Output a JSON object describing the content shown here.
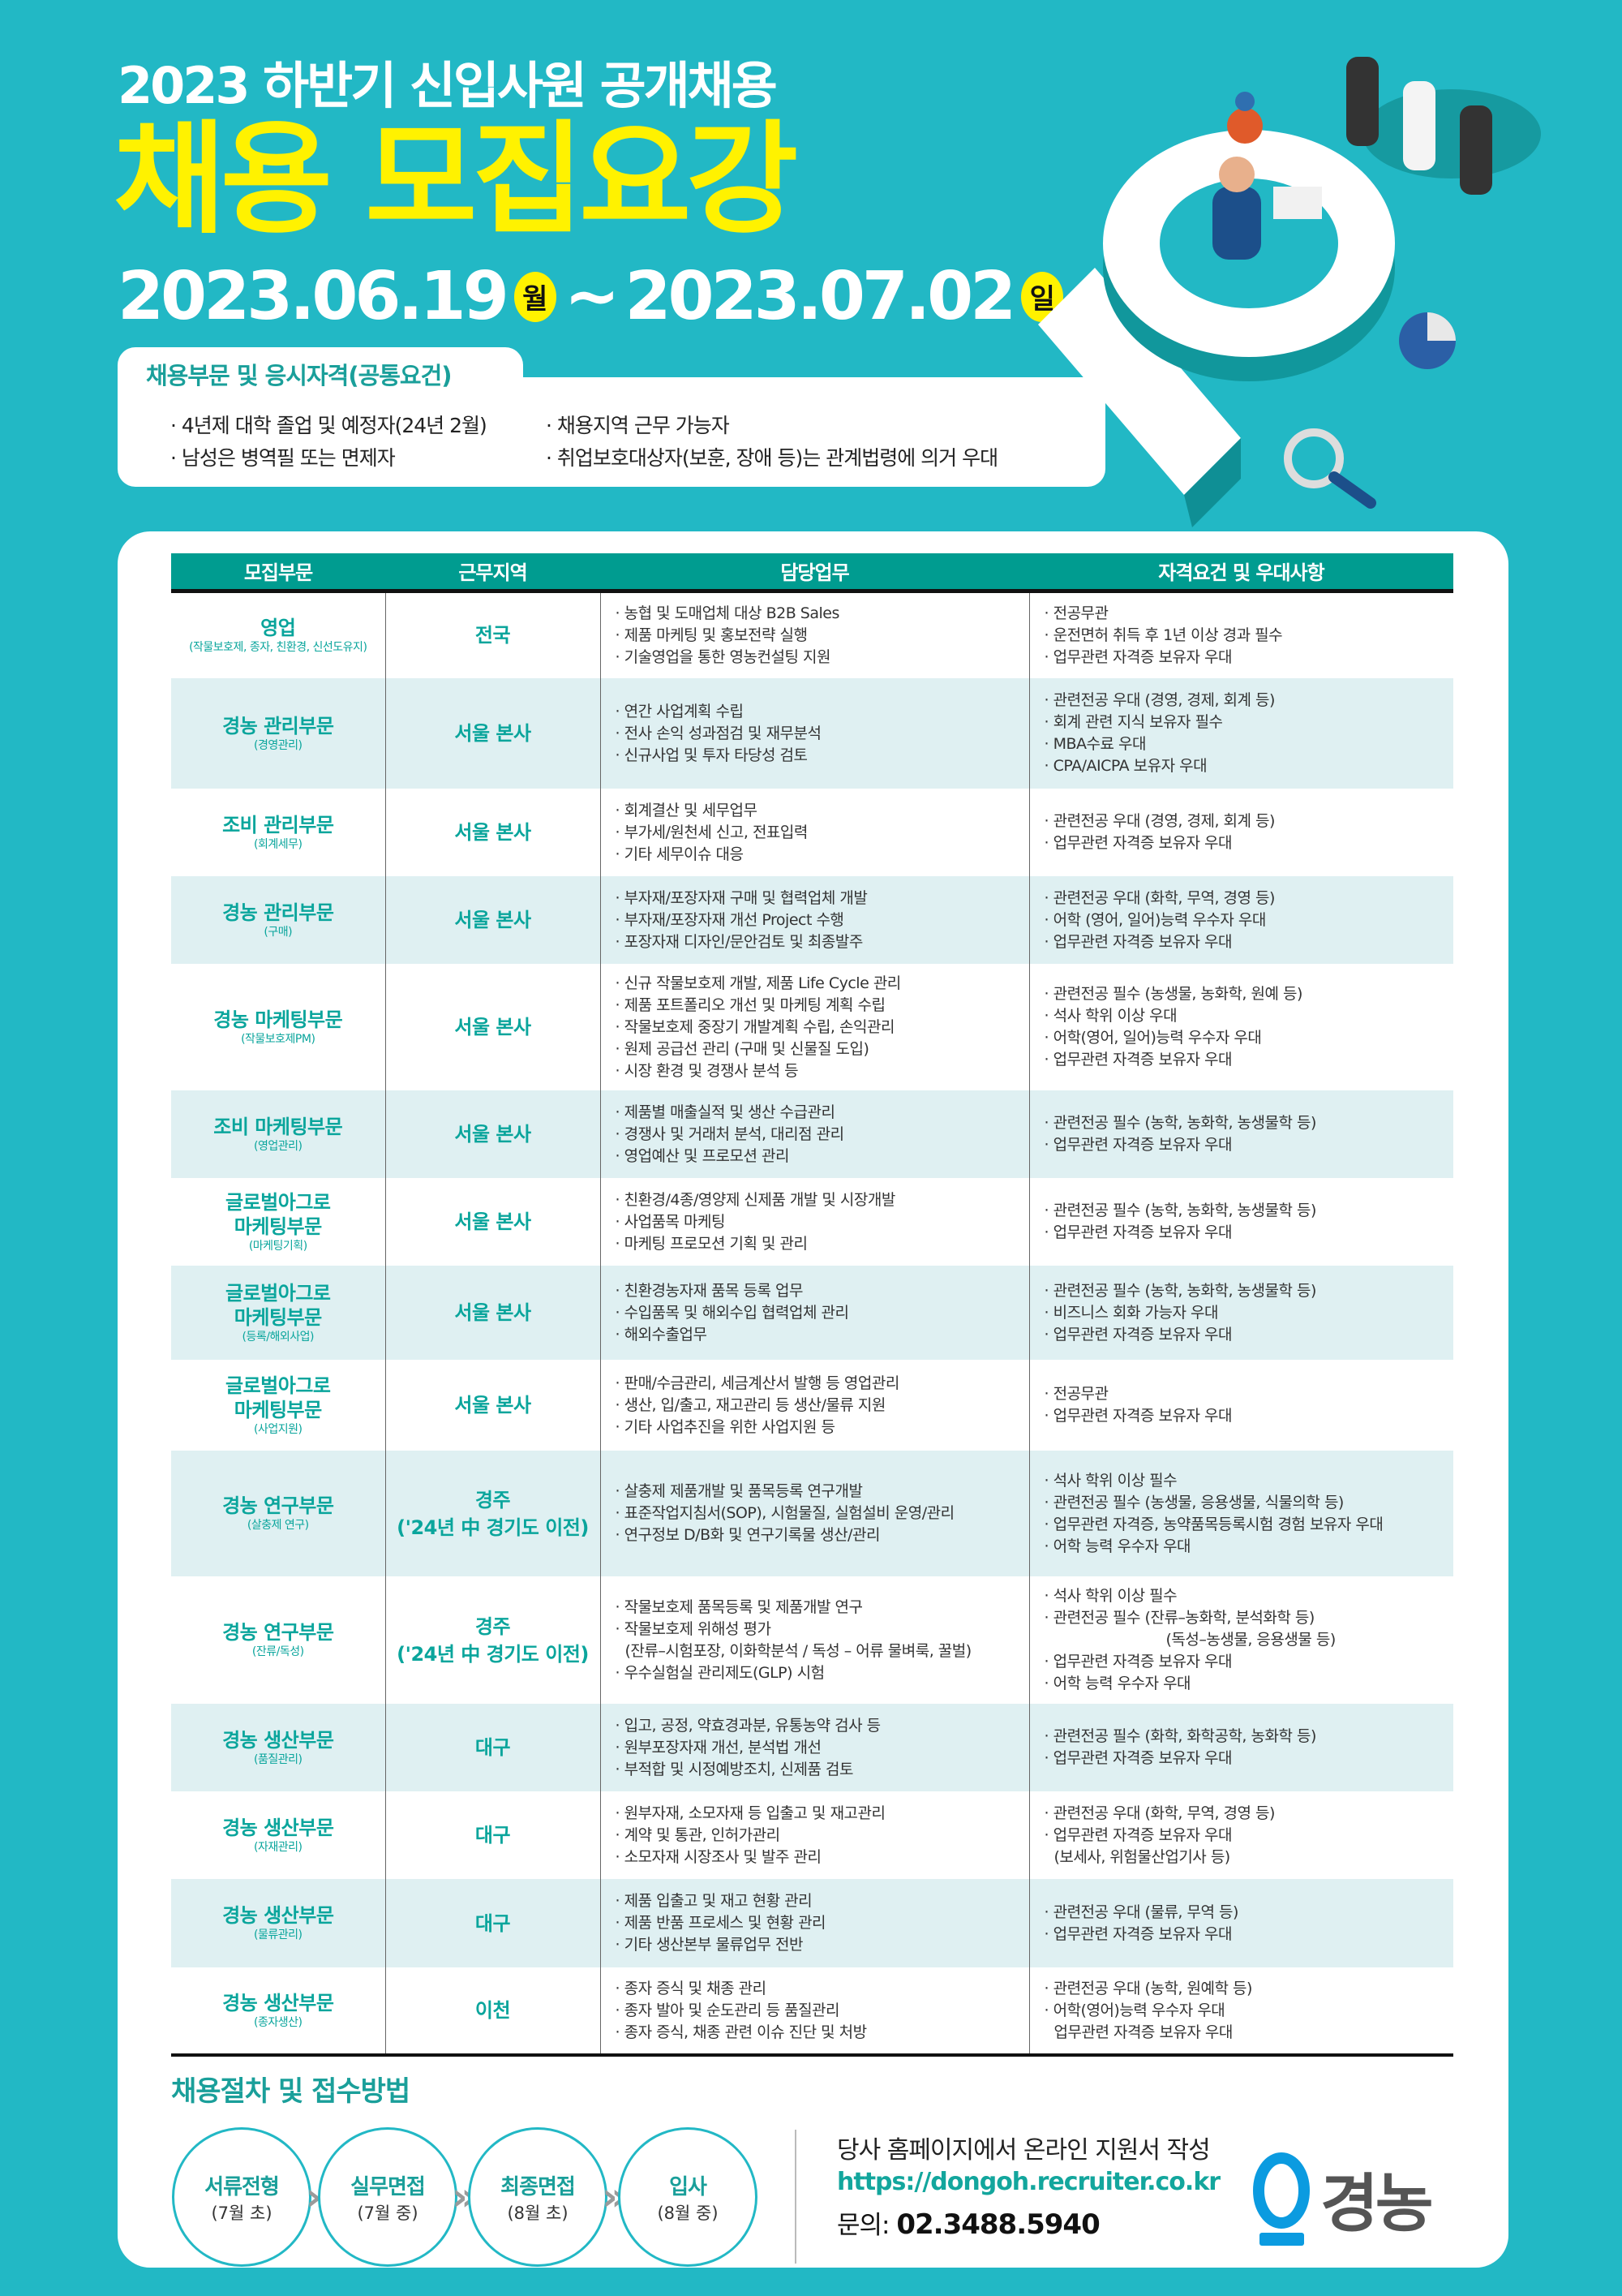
{
  "header": {
    "subtitle": "2023 하반기 신입사원 공개채용",
    "title": "채용 모집요강",
    "start_date": "2023.06.19",
    "start_day": "월",
    "tilde": "~",
    "end_date": "2023.07.02",
    "end_day": "일"
  },
  "qualifications": {
    "title": "채용부문 및 응시자격(공통요건)",
    "items": [
      "· 4년제 대학 졸업 및 예정자(24년 2월)",
      "· 남성은 병역필 또는 면제자",
      "· 채용지역 근무 가능자",
      "· 취업보호대상자(보훈, 장애 등)는 관계법령에 의거 우대"
    ]
  },
  "table": {
    "headers": [
      "모집부문",
      "근무지역",
      "담당업무",
      "자격요건 및 우대사항"
    ],
    "rows": [
      {
        "dept": [
          "영업"
        ],
        "sub": "(작물보호제, 종자, 친환경, 신선도유지)",
        "loc": "전국",
        "duties": [
          "농협 및 도매업체 대상 B2B Sales",
          "제품 마케팅 및 홍보전략 실행",
          "기술영업을 통한 영농컨설팅 지원"
        ],
        "quals": [
          "전공무관",
          "운전면허 취득 후 1년 이상 경과 필수",
          "업무관련 자격증 보유자 우대"
        ]
      },
      {
        "dept": [
          "경농 관리부문"
        ],
        "sub": "(경영관리)",
        "loc": "서울 본사",
        "duties": [
          "연간 사업계획 수립",
          "전사 손익 성과점검 및 재무분석",
          "신규사업 및 투자 타당성 검토"
        ],
        "quals": [
          "관련전공 우대 (경영, 경제, 회계 등)",
          "회계 관련 지식 보유자 필수",
          "MBA수료 우대",
          "CPA/AICPA 보유자 우대"
        ]
      },
      {
        "dept": [
          "조비 관리부문"
        ],
        "sub": "(회계세무)",
        "loc": "서울 본사",
        "duties": [
          "회계결산 및 세무업무",
          "부가세/원천세 신고, 전표입력",
          "기타 세무이슈 대응"
        ],
        "quals": [
          "관련전공 우대 (경영, 경제, 회계 등)",
          "업무관련 자격증 보유자 우대"
        ]
      },
      {
        "dept": [
          "경농 관리부문"
        ],
        "sub": "(구매)",
        "loc": "서울 본사",
        "duties": [
          "부자재/포장자재 구매 및 협력업체 개발",
          "부자재/포장자재 개선 Project 수행",
          "포장자재 디자인/문안검토 및 최종발주"
        ],
        "quals": [
          "관련전공 우대 (화학, 무역, 경영 등)",
          "어학 (영어, 일어)능력 우수자 우대",
          "업무관련 자격증 보유자 우대"
        ]
      },
      {
        "dept": [
          "경농 마케팅부문"
        ],
        "sub": "(작물보호제PM)",
        "loc": "서울 본사",
        "duties": [
          "신규 작물보호제 개발, 제품 Life Cycle 관리",
          "제품 포트폴리오 개선 및 마케팅 계획 수립",
          "작물보호제 중장기 개발계획 수립, 손익관리",
          "원제 공급선 관리 (구매 및 신물질 도입)",
          "시장 환경 및 경쟁사 분석 등"
        ],
        "quals": [
          "관련전공 필수 (농생물, 농화학, 원예 등)",
          "석사 학위 이상 우대",
          "어학(영어, 일어)능력 우수자 우대",
          "업무관련 자격증 보유자 우대"
        ]
      },
      {
        "dept": [
          "조비 마케팅부문"
        ],
        "sub": "(영업관리)",
        "loc": "서울 본사",
        "duties": [
          "제품별 매출실적 및 생산 수급관리",
          "경쟁사 및 거래처 분석, 대리점 관리",
          "영업예산 및 프로모션 관리"
        ],
        "quals": [
          "관련전공 필수 (농학, 농화학, 농생물학 등)",
          "업무관련 자격증 보유자 우대"
        ]
      },
      {
        "dept": [
          "글로벌아그로",
          "마케팅부문"
        ],
        "sub": "(마케팅기획)",
        "loc": "서울 본사",
        "duties": [
          "친환경/4종/영양제 신제품 개발 및 시장개발",
          "사업품목 마케팅",
          "마케팅 프로모션 기획 및 관리"
        ],
        "quals": [
          "관련전공 필수 (농학, 농화학, 농생물학 등)",
          "업무관련 자격증 보유자 우대"
        ]
      },
      {
        "dept": [
          "글로벌아그로",
          "마케팅부문"
        ],
        "sub": "(등록/해외사업)",
        "loc": "서울 본사",
        "duties": [
          "친환경농자재 품목 등록 업무",
          "수입품목 및 해외수입 협력업체 관리",
          "해외수출업무"
        ],
        "quals": [
          "관련전공 필수 (농학, 농화학, 농생물학 등)",
          "비즈니스 회화 가능자 우대",
          "업무관련 자격증 보유자 우대"
        ]
      },
      {
        "dept": [
          "글로벌아그로",
          "마케팅부문"
        ],
        "sub": "(사업지원)",
        "loc": "서울 본사",
        "duties": [
          "판매/수금관리, 세금계산서 발행 등 영업관리",
          "생산, 입/출고, 재고관리 등 생산/물류 지원",
          "기타 사업추진을 위한 사업지원 등"
        ],
        "quals": [
          "전공무관",
          "업무관련 자격증 보유자 우대"
        ]
      },
      {
        "dept": [
          "경농 연구부문"
        ],
        "sub": "(살충제 연구)",
        "loc": "경주\n('24년 中 경기도 이전)",
        "duties": [
          "살충제 제품개발 및 품목등록 연구개발",
          "표준작업지침서(SOP), 시험물질, 실험설비 운영/관리",
          "연구정보 D/B화 및 연구기록물 생산/관리"
        ],
        "quals": [
          "석사 학위 이상 필수",
          "관련전공 필수 (농생물, 응용생물, 식물의학 등)",
          "업무관련 자격증, 농약품목등록시험 경험 보유자 우대",
          "어학 능력 우수자 우대"
        ]
      },
      {
        "dept": [
          "경농 연구부문"
        ],
        "sub": "(잔류/독성)",
        "loc": "경주\n('24년 中 경기도 이전)",
        "duties": [
          "작물보호제 품목등록 및 제품개발 연구",
          "작물보호제 위해성 평가",
          {
            "text": "(잔류–시험포장, 이화학분석 / 독성 – 어류 물벼룩, 꿀벌)",
            "bullet": false
          },
          "우수실험실 관리제도(GLP) 시험"
        ],
        "quals": [
          "석사 학위 이상 필수",
          "관련전공 필수 (잔류–농화학, 분석화학 등)",
          {
            "text": "(독성–농생물, 응용생물 등)",
            "bullet": false,
            "indent": true
          },
          "업무관련 자격증 보유자 우대",
          "어학 능력 우수자 우대"
        ]
      },
      {
        "dept": [
          "경농 생산부문"
        ],
        "sub": "(품질관리)",
        "loc": "대구",
        "duties": [
          "입고, 공정, 약효경과분, 유통농약 검사 등",
          "원부포장자재 개선, 분석법 개선",
          "부적합 및 시정예방조치, 신제품 검토"
        ],
        "quals": [
          "관련전공 필수 (화학, 화학공학, 농화학 등)",
          "업무관련 자격증 보유자 우대"
        ]
      },
      {
        "dept": [
          "경농 생산부문"
        ],
        "sub": "(자재관리)",
        "loc": "대구",
        "duties": [
          "원부자재, 소모자재 등 입출고 및 재고관리",
          "계약 및 통관, 인허가관리",
          "소모자재 시장조사 및 발주 관리"
        ],
        "quals": [
          "관련전공 우대 (화학, 무역, 경영 등)",
          "업무관련 자격증 보유자 우대",
          {
            "text": "(보세사, 위험물산업기사 등)",
            "bullet": false
          }
        ]
      },
      {
        "dept": [
          "경농 생산부문"
        ],
        "sub": "(물류관리)",
        "loc": "대구",
        "duties": [
          "제품 입출고 및 재고 현황 관리",
          "제품 반품 프로세스 및 현황 관리",
          "기타 생산본부 물류업무 전반"
        ],
        "quals": [
          "관련전공 우대 (물류, 무역 등)",
          "업무관련 자격증 보유자 우대"
        ]
      },
      {
        "dept": [
          "경농 생산부문"
        ],
        "sub": "(종자생산)",
        "loc": "이천",
        "duties": [
          "종자 증식 및 채종 관리",
          "종자 발아 및 순도관리 등 품질관리",
          "종자 증식, 채종 관련 이슈 진단 및 처방"
        ],
        "quals": [
          "관련전공 우대 (농학, 원예학 등)",
          "어학(영어)능력 우수자 우대",
          {
            "text": "업무관련 자격증 보유자 우대",
            "bullet": false
          }
        ]
      }
    ]
  },
  "process": {
    "title": "채용절차 및 접수방법",
    "steps": [
      {
        "label": "서류전형",
        "when": "(7월 초)"
      },
      {
        "label": "실무면접",
        "when": "(7월 중)"
      },
      {
        "label": "최종면접",
        "when": "(8월 초)"
      },
      {
        "label": "입사",
        "when": "(8월 중)"
      }
    ],
    "arrow": "»",
    "apply_text": "당사 홈페이지에서 온라인 지원서 작성",
    "url": "https://dongoh.recruiter.co.kr",
    "contact_label": "문의:",
    "contact_phone": "02.3488.5940"
  },
  "logo": {
    "text": "경농",
    "colors": {
      "mark": "#0b9be0",
      "text": "#555555"
    }
  },
  "colors": {
    "background": "#22b8c5",
    "accent_yellow": "#fff200",
    "table_header": "#009c90",
    "teal_text": "#0aa59c",
    "alt_row": "#dff0f2"
  }
}
